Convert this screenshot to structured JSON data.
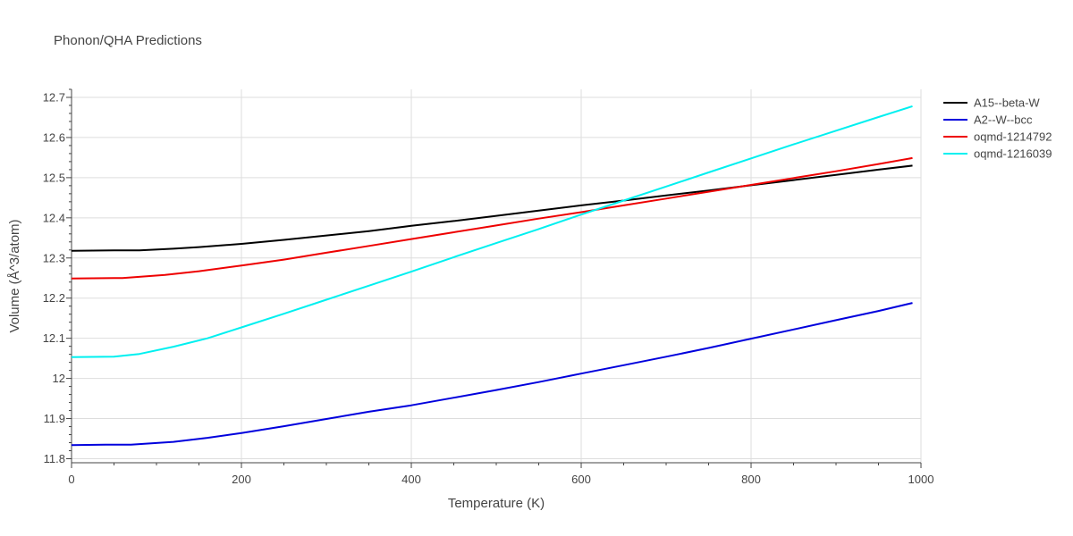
{
  "chart_data": {
    "type": "line",
    "title": "Phonon/QHA Predictions",
    "xlabel": "Temperature (K)",
    "ylabel": "Volume (Å^3/atom)",
    "xlim": [
      0,
      1000
    ],
    "ylim": [
      11.79,
      12.72
    ],
    "x_ticks": [
      0,
      200,
      400,
      600,
      800,
      1000
    ],
    "x_tick_labels": [
      "0",
      "200",
      "400",
      "600",
      "800",
      "1000"
    ],
    "y_ticks": [
      11.8,
      11.9,
      12.0,
      12.1,
      12.2,
      12.3,
      12.4,
      12.5,
      12.6,
      12.7
    ],
    "y_tick_labels": [
      "11.8",
      "11.9",
      "12",
      "12.1",
      "12.2",
      "12.3",
      "12.4",
      "12.5",
      "12.6",
      "12.7"
    ],
    "grid": true,
    "legend_position": "right",
    "series": [
      {
        "name": "A15--beta-W",
        "color": "#000000",
        "x": [
          0,
          50,
          80,
          120,
          150,
          200,
          250,
          300,
          350,
          400,
          450,
          500,
          550,
          600,
          650,
          700,
          750,
          800,
          850,
          900,
          950,
          990
        ],
        "y": [
          12.318,
          12.319,
          12.319,
          12.323,
          12.327,
          12.335,
          12.345,
          12.356,
          12.367,
          12.38,
          12.392,
          12.405,
          12.418,
          12.431,
          12.443,
          12.456,
          12.468,
          12.481,
          12.494,
          12.507,
          12.52,
          12.53
        ]
      },
      {
        "name": "A2--W--bcc",
        "color": "#0000dd",
        "x": [
          0,
          40,
          70,
          120,
          160,
          200,
          250,
          300,
          350,
          400,
          450,
          500,
          550,
          600,
          650,
          700,
          750,
          800,
          850,
          900,
          950,
          990
        ],
        "y": [
          11.834,
          11.835,
          11.835,
          11.842,
          11.852,
          11.864,
          11.881,
          11.899,
          11.917,
          11.933,
          11.952,
          11.971,
          11.991,
          12.012,
          12.033,
          12.054,
          12.076,
          12.099,
          12.122,
          12.145,
          12.168,
          12.188
        ]
      },
      {
        "name": "oqmd-1214792",
        "color": "#ee0000",
        "x": [
          0,
          60,
          110,
          150,
          200,
          250,
          300,
          350,
          400,
          450,
          500,
          550,
          600,
          650,
          700,
          750,
          800,
          850,
          900,
          950,
          990
        ],
        "y": [
          12.249,
          12.25,
          12.258,
          12.267,
          12.281,
          12.296,
          12.313,
          12.33,
          12.347,
          12.364,
          12.381,
          12.398,
          12.414,
          12.431,
          12.448,
          12.465,
          12.482,
          12.499,
          12.516,
          12.534,
          12.549
        ]
      },
      {
        "name": "oqmd-1216039",
        "color": "#00f0f0",
        "x": [
          0,
          50,
          80,
          120,
          160,
          200,
          250,
          300,
          350,
          400,
          450,
          500,
          550,
          600,
          650,
          700,
          750,
          800,
          850,
          900,
          950,
          990
        ],
        "y": [
          12.053,
          12.054,
          12.061,
          12.079,
          12.1,
          12.127,
          12.161,
          12.196,
          12.231,
          12.266,
          12.302,
          12.337,
          12.372,
          12.408,
          12.443,
          12.478,
          12.513,
          12.548,
          12.583,
          12.617,
          12.651,
          12.678
        ]
      }
    ]
  }
}
